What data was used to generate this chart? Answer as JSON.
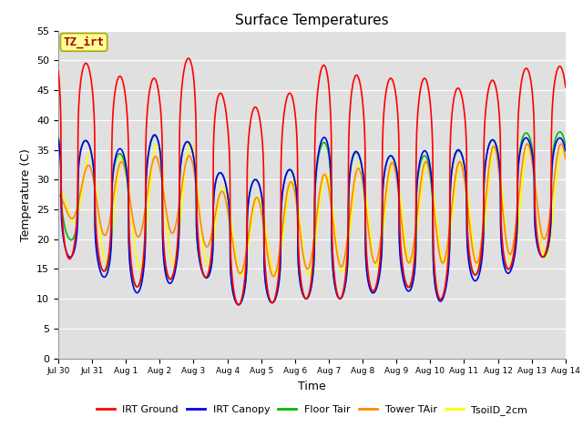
{
  "title": "Surface Temperatures",
  "xlabel": "Time",
  "ylabel": "Temperature (C)",
  "ylim": [
    0,
    55
  ],
  "yticks": [
    0,
    5,
    10,
    15,
    20,
    25,
    30,
    35,
    40,
    45,
    50,
    55
  ],
  "series": {
    "IRT Ground": {
      "color": "#FF0000",
      "lw": 1.2
    },
    "IRT Canopy": {
      "color": "#0000EE",
      "lw": 1.2
    },
    "Floor Tair": {
      "color": "#00BB00",
      "lw": 1.2
    },
    "Tower TAir": {
      "color": "#FF8800",
      "lw": 1.2
    },
    "TsoilD_2cm": {
      "color": "#FFFF00",
      "lw": 1.2
    }
  },
  "annotation_text": "TZ_irt",
  "annotation_color": "#AA0000",
  "annotation_bg": "#FFFF99",
  "annotation_border": "#AAAA00",
  "background_inner": "#E0E0E0",
  "background_outer": "#FFFFFF",
  "grid_color": "#FFFFFF",
  "total_days": 15,
  "tick_labels": [
    "Jul 30",
    "Jul 31",
    "Aug 1",
    "Aug 2",
    "Aug 3",
    "Aug 4",
    "Aug 5",
    "Aug 6",
    "Aug 7",
    "Aug 8",
    "Aug 9",
    "Aug 10",
    "Aug 11",
    "Aug 12",
    "Aug 13",
    "Aug 14"
  ],
  "irt_ground_peaks": [
    52,
    49,
    47,
    47,
    51,
    43,
    42,
    45,
    50,
    47,
    47,
    47,
    45,
    47,
    49
  ],
  "irt_ground_troughs": [
    17,
    16,
    12,
    12,
    16,
    9,
    9,
    10,
    10,
    10,
    14,
    8,
    14,
    14,
    17
  ],
  "canopy_peaks": [
    39,
    36,
    35,
    38,
    36,
    30,
    30,
    32,
    38,
    34,
    34,
    35,
    35,
    37,
    37
  ],
  "canopy_troughs": [
    18,
    15,
    11,
    11,
    16,
    9,
    9,
    10,
    10,
    10,
    13,
    8,
    13,
    13,
    17
  ],
  "floor_peaks": [
    39,
    36,
    34,
    38,
    36,
    30,
    30,
    32,
    37,
    34,
    34,
    34,
    35,
    37,
    38
  ],
  "floor_troughs": [
    22,
    16,
    12,
    12,
    16,
    9,
    9,
    10,
    10,
    10,
    14,
    8,
    14,
    14,
    17
  ],
  "tower_peaks": [
    28,
    33,
    33,
    34,
    34,
    27,
    27,
    30,
    31,
    32,
    33,
    33,
    33,
    36,
    36
  ],
  "tower_troughs": [
    25,
    21,
    20,
    21,
    21,
    15,
    13,
    15,
    15,
    16,
    16,
    16,
    16,
    16,
    20
  ],
  "soil_peaks": [
    28,
    35,
    34,
    36,
    36,
    28,
    27,
    30,
    31,
    33,
    33,
    33,
    33,
    36,
    35
  ],
  "soil_troughs": [
    27,
    17,
    15,
    15,
    17,
    14,
    14,
    14,
    14,
    15,
    16,
    16,
    16,
    15,
    17
  ],
  "points_per_day": 144,
  "peak_phase": 0.58,
  "sharpness": 3.0
}
